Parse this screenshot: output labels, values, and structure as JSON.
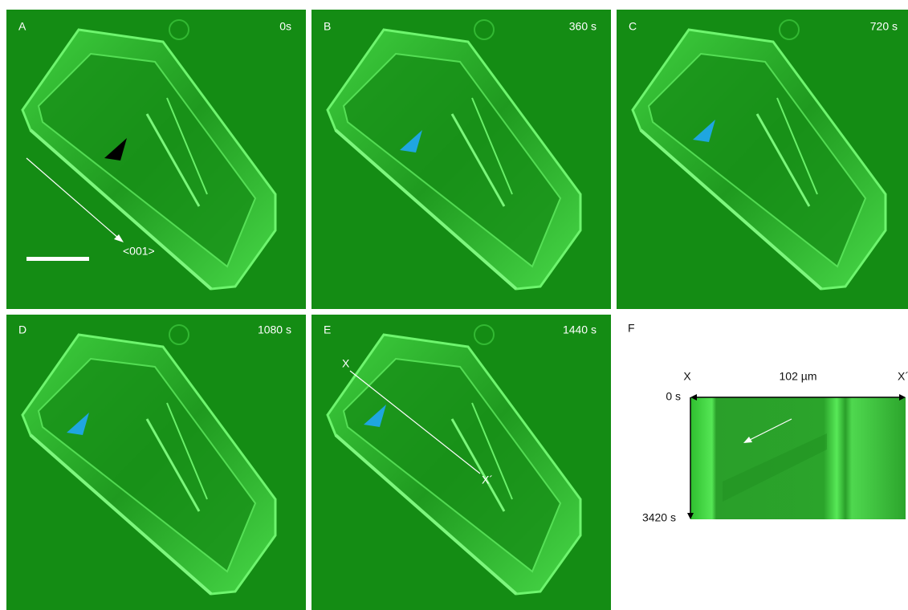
{
  "panels": [
    {
      "label": "A",
      "time": "0s",
      "annotation": "<001>"
    },
    {
      "label": "B",
      "time": "360 s"
    },
    {
      "label": "C",
      "time": "720 s"
    },
    {
      "label": "D",
      "time": "1080 s"
    },
    {
      "label": "E",
      "time": "1440 s",
      "line_start": "X",
      "line_end": "X´"
    }
  ],
  "kymograph": {
    "label": "F",
    "left": "X",
    "width": "102 µm",
    "right": "X´",
    "start": "0 s",
    "end": "3420 s"
  }
}
